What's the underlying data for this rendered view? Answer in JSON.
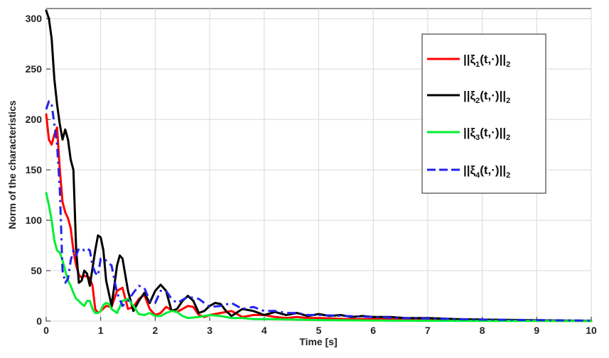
{
  "chart_data": {
    "type": "line",
    "title": "",
    "xlabel": "Time [s]",
    "ylabel": "Norm of the characteristics",
    "xlim": [
      0,
      10
    ],
    "ylim": [
      0,
      310
    ],
    "xticks": [
      "0",
      "1",
      "2",
      "3",
      "4",
      "5",
      "6",
      "7",
      "8",
      "9",
      "10"
    ],
    "yticks": [
      "0",
      "50",
      "100",
      "150",
      "200",
      "250",
      "300"
    ],
    "grid": true,
    "legend_position": "top-right",
    "series": [
      {
        "name": "||ξ1(t,·)||2",
        "name_parts": {
          "main": "||ξ",
          "sub1": "1",
          "mid": "(t,·)||",
          "sub2": "2"
        },
        "color": "#ff0000",
        "style": "solid",
        "x": [
          0,
          0.05,
          0.1,
          0.15,
          0.2,
          0.25,
          0.3,
          0.35,
          0.4,
          0.45,
          0.5,
          0.55,
          0.6,
          0.65,
          0.7,
          0.75,
          0.8,
          0.85,
          0.9,
          0.95,
          1.0,
          1.1,
          1.2,
          1.3,
          1.4,
          1.5,
          1.6,
          1.7,
          1.8,
          1.9,
          2.0,
          2.1,
          2.2,
          2.3,
          2.4,
          2.5,
          2.6,
          2.7,
          2.8,
          2.9,
          3.0,
          3.2,
          3.4,
          3.6,
          3.8,
          4.0,
          4.2,
          4.4,
          4.6,
          4.8,
          5.0,
          5.5,
          6.0,
          6.5,
          7.0,
          8.0,
          9.0,
          10.0
        ],
        "y": [
          205,
          180,
          175,
          185,
          192,
          150,
          118,
          108,
          102,
          92,
          70,
          55,
          46,
          43,
          45,
          44,
          43,
          35,
          12,
          8,
          10,
          15,
          14,
          30,
          33,
          12,
          14,
          22,
          26,
          12,
          6,
          8,
          14,
          11,
          9,
          12,
          15,
          14,
          6,
          4,
          6,
          8,
          10,
          4,
          6,
          6,
          4,
          3,
          4,
          3,
          3,
          2,
          2,
          1.5,
          1,
          0.5,
          0.3,
          0.2
        ]
      },
      {
        "name": "||ξ2(t,·)||2",
        "name_parts": {
          "main": "||ξ",
          "sub1": "2",
          "mid": "(t,·)||",
          "sub2": "2"
        },
        "color": "#000000",
        "style": "solid",
        "x": [
          0,
          0.05,
          0.1,
          0.15,
          0.2,
          0.25,
          0.3,
          0.35,
          0.4,
          0.45,
          0.5,
          0.55,
          0.6,
          0.65,
          0.7,
          0.75,
          0.8,
          0.9,
          0.95,
          1.0,
          1.05,
          1.1,
          1.2,
          1.3,
          1.35,
          1.4,
          1.5,
          1.6,
          1.7,
          1.8,
          1.9,
          2.0,
          2.1,
          2.2,
          2.3,
          2.4,
          2.5,
          2.6,
          2.7,
          2.8,
          2.9,
          3.0,
          3.1,
          3.2,
          3.3,
          3.4,
          3.6,
          3.8,
          4.0,
          4.2,
          4.4,
          4.6,
          4.8,
          5.0,
          5.2,
          5.4,
          5.6,
          5.8,
          6.0,
          6.3,
          6.6,
          7.0,
          7.5,
          8.0,
          9.0,
          10.0
        ],
        "y": [
          308,
          300,
          280,
          240,
          215,
          195,
          180,
          190,
          180,
          160,
          150,
          70,
          38,
          40,
          50,
          47,
          35,
          70,
          85,
          83,
          70,
          40,
          15,
          55,
          65,
          62,
          30,
          10,
          20,
          28,
          18,
          30,
          36,
          30,
          10,
          12,
          20,
          25,
          20,
          8,
          10,
          15,
          18,
          17,
          10,
          5,
          12,
          10,
          6,
          9,
          6,
          8,
          5,
          7,
          5,
          6,
          4,
          5,
          4,
          4,
          3,
          3,
          2,
          1.5,
          0.8,
          0.3
        ]
      },
      {
        "name": "||ξ3(t,·)||2",
        "name_parts": {
          "main": "||ξ",
          "sub1": "3",
          "mid": "(t,·)||",
          "sub2": "2"
        },
        "color": "#00ee33",
        "style": "solid",
        "x": [
          0,
          0.05,
          0.1,
          0.15,
          0.2,
          0.25,
          0.3,
          0.35,
          0.4,
          0.45,
          0.5,
          0.55,
          0.6,
          0.65,
          0.7,
          0.75,
          0.8,
          0.85,
          0.9,
          0.95,
          1.0,
          1.05,
          1.1,
          1.15,
          1.2,
          1.3,
          1.4,
          1.5,
          1.6,
          1.7,
          1.8,
          1.9,
          2.0,
          2.1,
          2.2,
          2.3,
          2.4,
          2.5,
          2.6,
          2.8,
          3.0,
          3.2,
          3.4,
          3.6,
          3.8,
          4.0,
          4.5,
          5.0,
          6.0,
          7.0,
          8.0,
          10.0
        ],
        "y": [
          127,
          115,
          100,
          80,
          70,
          68,
          60,
          50,
          40,
          35,
          28,
          22,
          20,
          17,
          15,
          20,
          20,
          12,
          8,
          8,
          10,
          16,
          18,
          17,
          12,
          8,
          20,
          22,
          15,
          7,
          6,
          8,
          5,
          5,
          8,
          10,
          9,
          5,
          3,
          4,
          6,
          5,
          3,
          3,
          2,
          2,
          1.5,
          1,
          0.5,
          0.3,
          0.2,
          0.1
        ]
      },
      {
        "name": "||ξ4(t,·)||2",
        "name_parts": {
          "main": "||ξ",
          "sub1": "4",
          "mid": "(t,·)||",
          "sub2": "2"
        },
        "color": "#2222ee",
        "style": "dashed",
        "x": [
          0,
          0.05,
          0.1,
          0.15,
          0.2,
          0.25,
          0.3,
          0.35,
          0.4,
          0.45,
          0.5,
          0.55,
          0.6,
          0.65,
          0.7,
          0.75,
          0.8,
          0.85,
          0.9,
          0.95,
          1.0,
          1.1,
          1.2,
          1.3,
          1.4,
          1.5,
          1.6,
          1.7,
          1.8,
          1.9,
          2.0,
          2.1,
          2.2,
          2.3,
          2.4,
          2.6,
          2.8,
          3.0,
          3.2,
          3.4,
          3.6,
          3.8,
          4.0,
          4.2,
          4.4,
          4.6,
          4.8,
          5.0,
          5.5,
          6.0,
          6.5,
          7.0,
          8.0,
          9.0,
          10.0
        ],
        "y": [
          210,
          218,
          215,
          195,
          175,
          130,
          50,
          38,
          42,
          60,
          70,
          65,
          72,
          72,
          70,
          72,
          70,
          55,
          48,
          45,
          62,
          60,
          55,
          28,
          15,
          20,
          28,
          35,
          33,
          20,
          18,
          30,
          30,
          22,
          18,
          24,
          22,
          14,
          15,
          18,
          12,
          14,
          10,
          10,
          8,
          8,
          6,
          6,
          5,
          4,
          3,
          2.5,
          1.5,
          1,
          0.5
        ]
      }
    ]
  }
}
